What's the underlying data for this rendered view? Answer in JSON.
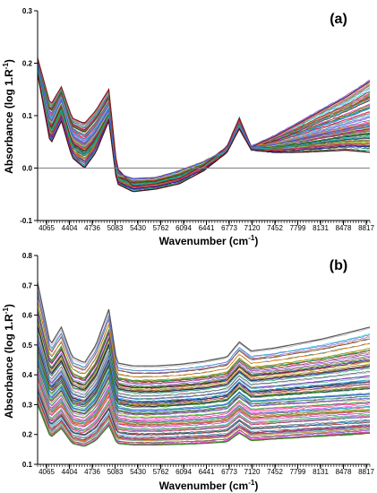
{
  "chart_data": [
    {
      "type": "line",
      "panel_label": "(a)",
      "xlabel": "Wavenumber (cm",
      "xlabel_sup": "-1",
      "xlabel_tail": ")",
      "ylabel": "Absorbance (log 1.R",
      "ylabel_sup": "-1",
      "ylabel_tail": ")",
      "x_ticks": [
        "4065",
        "4404",
        "4736",
        "5083",
        "5430",
        "5762",
        "6094",
        "6441",
        "6773",
        "7120",
        "7452",
        "7799",
        "8131",
        "8478",
        "8817"
      ],
      "y_ticks": [
        "-0.1",
        "0.0",
        "0.1",
        "0.2",
        "0.3"
      ],
      "ylim": [
        -0.1,
        0.3
      ],
      "xlim": [
        4065,
        8817
      ],
      "zero_line": true,
      "grid": false,
      "legend": "none",
      "series_count": 120,
      "series": [
        {
          "x": [
            4065,
            4250,
            4404,
            4560,
            4736,
            4900,
            5083,
            5200,
            5430,
            5762,
            6094,
            6441,
            6773,
            6950,
            7120,
            7452,
            7799,
            8131,
            8478,
            8817
          ],
          "y": [
            0.21,
            0.12,
            0.155,
            0.095,
            0.085,
            0.11,
            0.15,
            0.0,
            -0.035,
            -0.03,
            -0.02,
            0.005,
            0.04,
            0.095,
            0.04,
            0.06,
            0.085,
            0.11,
            0.135,
            0.165
          ]
        },
        {
          "x": [
            4065,
            4250,
            4404,
            4560,
            4736,
            4900,
            5083,
            5200,
            5430,
            5762,
            6094,
            6441,
            6773,
            6950,
            7120,
            7452,
            7799,
            8131,
            8478,
            8817
          ],
          "y": [
            0.2,
            0.085,
            0.13,
            0.06,
            0.045,
            0.07,
            0.11,
            -0.01,
            -0.02,
            -0.018,
            -0.005,
            0.012,
            0.035,
            0.085,
            0.04,
            0.045,
            0.055,
            0.065,
            0.075,
            0.085
          ]
        },
        {
          "x": [
            4065,
            4250,
            4404,
            4560,
            4736,
            4900,
            5083,
            5200,
            5430,
            5762,
            6094,
            6441,
            6773,
            6950,
            7120,
            7452,
            7799,
            8131,
            8478,
            8817
          ],
          "y": [
            0.18,
            0.045,
            0.09,
            0.02,
            0.0,
            0.03,
            0.09,
            -0.03,
            -0.045,
            -0.04,
            -0.03,
            -0.005,
            0.03,
            0.075,
            0.035,
            0.03,
            0.03,
            0.032,
            0.034,
            0.03
          ]
        }
      ]
    },
    {
      "type": "line",
      "panel_label": "(b)",
      "xlabel": "Wavenumber (cm",
      "xlabel_sup": "-1",
      "xlabel_tail": ")",
      "ylabel": "Absorbance (log 1.R",
      "ylabel_sup": "-1",
      "ylabel_tail": ")",
      "x_ticks": [
        "4065",
        "4404",
        "4736",
        "5083",
        "5430",
        "5762",
        "6094",
        "6441",
        "6773",
        "7120",
        "7452",
        "7799",
        "8131",
        "8478",
        "8817"
      ],
      "y_ticks": [
        "0.1",
        "0.2",
        "0.3",
        "0.4",
        "0.5",
        "0.6",
        "0.7",
        "0.8"
      ],
      "ylim": [
        0.1,
        0.8
      ],
      "xlim": [
        4065,
        8817
      ],
      "zero_line": false,
      "grid": false,
      "legend": "none",
      "series_count": 120,
      "series": [
        {
          "x": [
            4065,
            4250,
            4404,
            4560,
            4736,
            4900,
            5083,
            5200,
            5430,
            5762,
            6094,
            6441,
            6773,
            6950,
            7120,
            7452,
            7799,
            8131,
            8478,
            8817
          ],
          "y": [
            0.71,
            0.5,
            0.56,
            0.46,
            0.44,
            0.5,
            0.62,
            0.44,
            0.43,
            0.43,
            0.435,
            0.445,
            0.46,
            0.51,
            0.48,
            0.49,
            0.505,
            0.52,
            0.54,
            0.56
          ]
        },
        {
          "x": [
            4065,
            4250,
            4404,
            4560,
            4736,
            4900,
            5083,
            5200,
            5430,
            5762,
            6094,
            6441,
            6773,
            6950,
            7120,
            7452,
            7799,
            8131,
            8478,
            8817
          ],
          "y": [
            0.45,
            0.32,
            0.36,
            0.29,
            0.28,
            0.32,
            0.41,
            0.29,
            0.28,
            0.28,
            0.285,
            0.29,
            0.3,
            0.34,
            0.31,
            0.315,
            0.32,
            0.325,
            0.33,
            0.335
          ]
        },
        {
          "x": [
            4065,
            4250,
            4404,
            4560,
            4736,
            4900,
            5083,
            5200,
            5430,
            5762,
            6094,
            6441,
            6773,
            6950,
            7120,
            7452,
            7799,
            8131,
            8478,
            8817
          ],
          "y": [
            0.3,
            0.19,
            0.22,
            0.17,
            0.16,
            0.18,
            0.23,
            0.17,
            0.165,
            0.165,
            0.167,
            0.17,
            0.175,
            0.205,
            0.18,
            0.185,
            0.19,
            0.195,
            0.2,
            0.205
          ]
        }
      ]
    }
  ],
  "palette": [
    "#e6194b",
    "#3cb44b",
    "#4363d8",
    "#f58231",
    "#911eb4",
    "#42d4f4",
    "#f032e6",
    "#bfef45",
    "#469990",
    "#9a6324",
    "#800000",
    "#808000",
    "#000075",
    "#a9a9a9",
    "#ff69b4",
    "#00a86b",
    "#1e90ff",
    "#8b4513",
    "#ff8c00",
    "#6a5acd",
    "#2f4f4f",
    "#228b22",
    "#dc143c",
    "#00ced1"
  ],
  "colors": {
    "axis": "#000000",
    "zero_line": "#808080",
    "upper_envelope_a": "#8b1a1a",
    "lower_envelope_a": "#5a1010",
    "lower_envelope_b": "#2e8b2e"
  }
}
